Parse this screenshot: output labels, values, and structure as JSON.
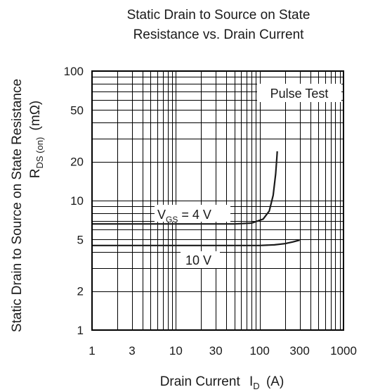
{
  "chart_data": {
    "type": "line",
    "title_lines": [
      "Static Drain to Source on State",
      "Resistance vs. Drain Current"
    ],
    "xlabel": {
      "text": "Drain Current ",
      "symbol": "I",
      "sub": "D",
      "unit": " (A)"
    },
    "ylabel": {
      "line1": "Static Drain to Source on State Resistance",
      "line2_symbol": "R",
      "line2_sub": "DS (on)",
      "line2_unit": " (mΩ)"
    },
    "x_scale": "log",
    "y_scale": "log",
    "xlim": [
      1,
      1000
    ],
    "ylim": [
      1,
      100
    ],
    "x_ticks": [
      1,
      3,
      10,
      30,
      100,
      300,
      1000
    ],
    "x_tick_labels": [
      "1",
      "3",
      "10",
      "30",
      "100",
      "300",
      "1000"
    ],
    "y_ticks": [
      1,
      2,
      5,
      10,
      20,
      50,
      100
    ],
    "y_tick_labels": [
      "1",
      "2",
      "5",
      "10",
      "20",
      "50",
      "100"
    ],
    "grid": true,
    "series": [
      {
        "name": "VGS = 4 V",
        "x": [
          1,
          10,
          50,
          80,
          110,
          130,
          145,
          155,
          160,
          162
        ],
        "y": [
          6.6,
          6.6,
          6.6,
          6.7,
          7.2,
          8.3,
          11,
          16,
          21,
          24
        ]
      },
      {
        "name": "10 V",
        "x": [
          1,
          10,
          100,
          150,
          200,
          250,
          300
        ],
        "y": [
          4.5,
          4.5,
          4.5,
          4.55,
          4.65,
          4.8,
          4.95
        ]
      }
    ],
    "annotations": [
      {
        "text": "Pulse Test",
        "x": 300,
        "y": 72
      },
      {
        "symbol": "V",
        "sub": "GS",
        "text": " = 4 V",
        "x": 25,
        "y": 8.2
      },
      {
        "text": "10 V",
        "x": 25,
        "y": 3.8
      }
    ]
  }
}
